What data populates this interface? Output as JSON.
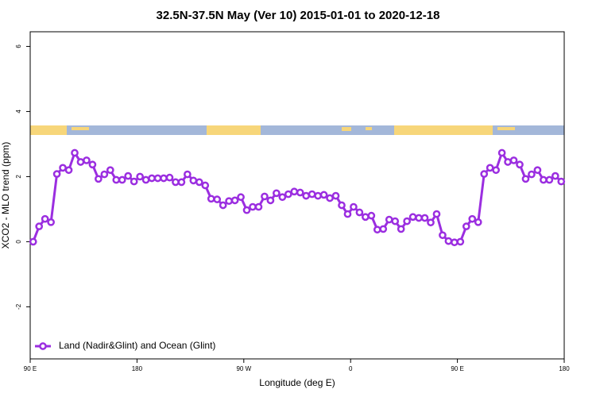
{
  "chart_data": {
    "type": "line",
    "title": "32.5N-37.5N May (Ver 10)   2015-01-01 to 2020-12-18",
    "xlabel": "Longitude (deg E)",
    "ylabel": "XCO2 - MLO trend (ppm)",
    "x": [
      92.5,
      97.5,
      102.5,
      107.5,
      112.5,
      117.5,
      122.5,
      127.5,
      132.5,
      137.5,
      142.5,
      147.5,
      152.5,
      157.5,
      162.5,
      167.5,
      172.5,
      177.5,
      182.5,
      187.5,
      192.5,
      197.5,
      202.5,
      207.5,
      212.5,
      217.5,
      222.5,
      227.5,
      232.5,
      237.5,
      242.5,
      247.5,
      252.5,
      257.5,
      262.5,
      267.5,
      272.5,
      277.5,
      282.5,
      287.5,
      292.5,
      297.5,
      302.5,
      307.5,
      312.5,
      317.5,
      322.5,
      327.5,
      332.5,
      337.5,
      342.5,
      347.5,
      352.5,
      357.5,
      362.5,
      367.5,
      372.5,
      377.5,
      382.5,
      387.5,
      392.5,
      397.5,
      402.5,
      407.5,
      412.5,
      417.5,
      422.5,
      427.5,
      432.5,
      437.5,
      442.5,
      447.5,
      452.5,
      457.5,
      462.5,
      467.5,
      472.5,
      477.5,
      482.5,
      487.5,
      492.5,
      497.5,
      502.5,
      507.5,
      512.5,
      517.5,
      522.5,
      527.5,
      532.5,
      537.5
    ],
    "series": [
      {
        "name": "Land (Nadir&Glint) and Ocean (Glint)",
        "color": "#9b2ee0",
        "values": [
          0.0,
          0.47,
          0.7,
          0.6,
          2.08,
          2.27,
          2.2,
          2.73,
          2.45,
          2.5,
          2.37,
          1.93,
          2.07,
          2.2,
          1.9,
          1.9,
          2.02,
          1.85,
          2.0,
          1.9,
          1.95,
          1.95,
          1.95,
          1.97,
          1.83,
          1.83,
          2.07,
          1.88,
          1.83,
          1.73,
          1.32,
          1.3,
          1.12,
          1.25,
          1.27,
          1.37,
          0.97,
          1.07,
          1.07,
          1.39,
          1.27,
          1.49,
          1.37,
          1.46,
          1.54,
          1.51,
          1.41,
          1.46,
          1.41,
          1.44,
          1.34,
          1.41,
          1.12,
          0.85,
          1.07,
          0.9,
          0.76,
          0.8,
          0.37,
          0.39,
          0.68,
          0.63,
          0.39,
          0.63,
          0.76,
          0.73,
          0.73,
          0.59,
          0.85,
          0.2,
          0.02,
          -0.02,
          0.0,
          0.47,
          0.7,
          0.6,
          2.08,
          2.27,
          2.2,
          2.73,
          2.45,
          2.5,
          2.37,
          1.93,
          2.07,
          2.2,
          1.9,
          1.9,
          2.02,
          1.85
        ]
      }
    ],
    "xlim": [
      90,
      540
    ],
    "xticks": [
      {
        "value": 90,
        "label": "90 E"
      },
      180,
      {
        "value": 270,
        "label": "90 W"
      },
      {
        "value": 360,
        "label": "0"
      },
      {
        "value": 450,
        "label": "90 E"
      },
      {
        "value": 540,
        "label": "180"
      }
    ],
    "ylim": [
      -3.6,
      6.45
    ],
    "yticks": [
      -2,
      0,
      2,
      4,
      6
    ],
    "legend": "bottom-left"
  }
}
